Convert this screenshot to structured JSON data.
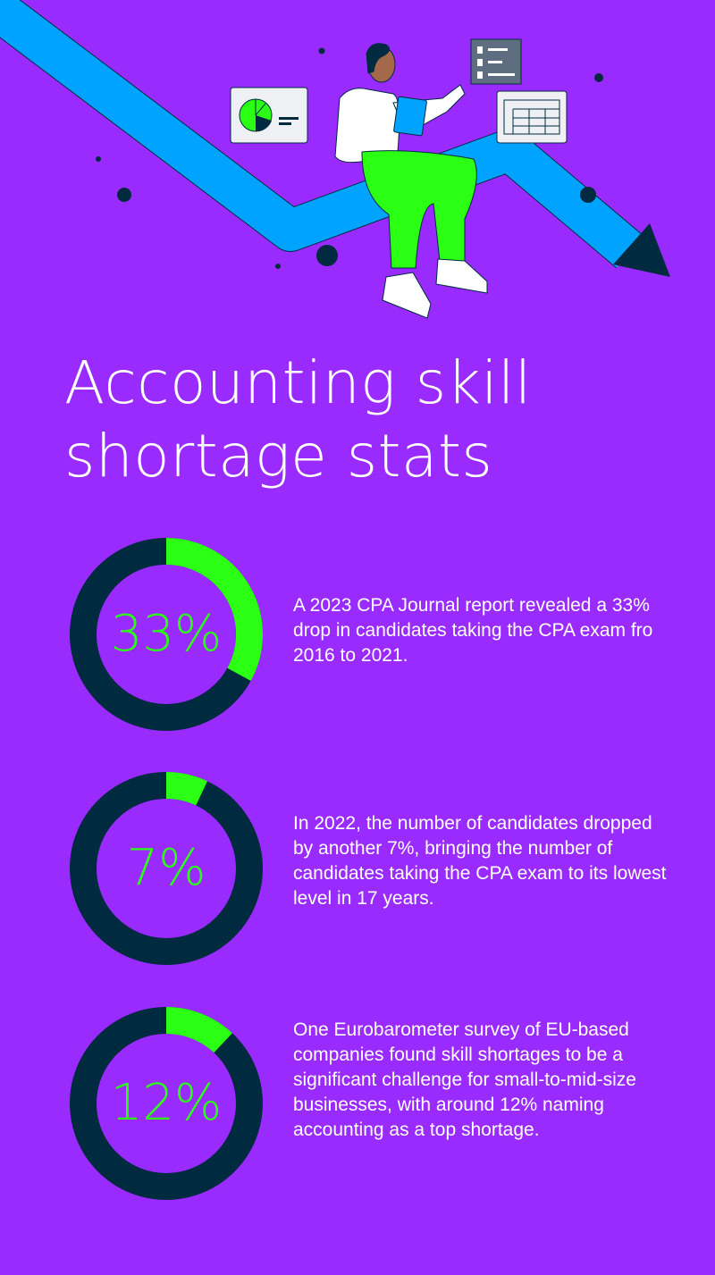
{
  "title": {
    "line1": "Accounting skill",
    "line2": "shortage stats"
  },
  "colors": {
    "background": "#9a2bfe",
    "accent": "#2bff14",
    "ring": "#002a40",
    "arrow": "#00a3ff",
    "text": "#ffffff"
  },
  "chart_data": {
    "type": "pie",
    "variant": "donut",
    "series": [
      {
        "label": "33%",
        "value": 33,
        "description": "A 2023 CPA Journal report revealed a 33% drop in candidates taking the CPA exam fro 2016 to 2021."
      },
      {
        "label": "7%",
        "value": 7,
        "description": "In 2022, the number of candidates dropped by another 7%, bringing the number of candidates taking the CPA exam to its lowest level in 17 years."
      },
      {
        "label": "12%",
        "value": 12,
        "description": "One Eurobarometer survey of EU-based companies found skill shortages to be a significant challenge for small-to-mid-size businesses, with around 12% naming accounting as a top shortage."
      }
    ]
  },
  "illustration": {
    "icons": [
      "downward-trend-arrow",
      "pie-chart-card",
      "checklist-card",
      "spreadsheet-card",
      "person-with-tablet"
    ]
  }
}
